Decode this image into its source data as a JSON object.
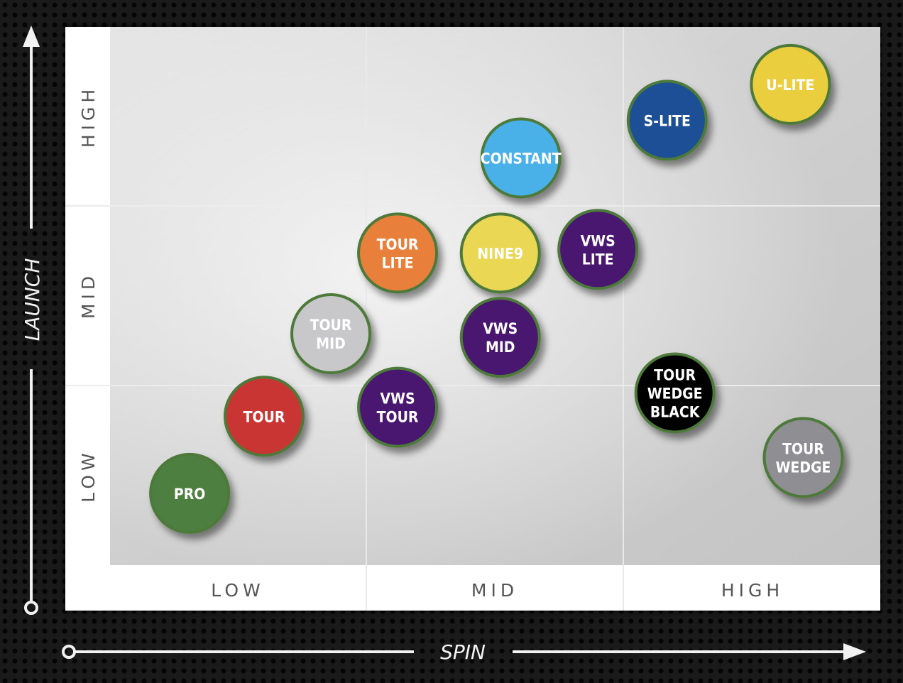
{
  "chart_data": {
    "type": "scatter",
    "title": "",
    "xlabel": "SPIN",
    "ylabel": "LAUNCH",
    "x_categories": [
      "LOW",
      "MID",
      "HIGH"
    ],
    "y_categories": [
      "LOW",
      "MID",
      "HIGH"
    ],
    "xlim": [
      0,
      3
    ],
    "ylim": [
      0,
      3
    ],
    "grid": true,
    "points": [
      {
        "label": [
          "PRO"
        ],
        "x": 0.31,
        "y": 0.4,
        "color": "#4d7f3f"
      },
      {
        "label": [
          "TOUR"
        ],
        "x": 0.6,
        "y": 0.83,
        "color": "#c93530"
      },
      {
        "label": [
          "TOUR",
          "MID"
        ],
        "x": 0.86,
        "y": 1.29,
        "color": "#c8c8ca"
      },
      {
        "label": [
          "VWS",
          "TOUR"
        ],
        "x": 1.12,
        "y": 0.88,
        "color": "#4a1370"
      },
      {
        "label": [
          "TOUR",
          "LITE"
        ],
        "x": 1.12,
        "y": 1.74,
        "color": "#e8803a"
      },
      {
        "label": [
          "NINE9"
        ],
        "x": 1.52,
        "y": 1.74,
        "color": "#ead753"
      },
      {
        "label": [
          "VWS",
          "MID"
        ],
        "x": 1.52,
        "y": 1.27,
        "color": "#4a1370"
      },
      {
        "label": [
          "VWS",
          "LITE"
        ],
        "x": 1.9,
        "y": 1.76,
        "color": "#4a1370"
      },
      {
        "label": [
          "CONSTANT"
        ],
        "x": 1.6,
        "y": 2.27,
        "color": "#4ab0e8"
      },
      {
        "label": [
          "S-LITE"
        ],
        "x": 2.17,
        "y": 2.48,
        "color": "#1d4f95"
      },
      {
        "label": [
          "U-LITE"
        ],
        "x": 2.65,
        "y": 2.68,
        "color": "#ebce3e"
      },
      {
        "label": [
          "TOUR",
          "WEDGE",
          "BLACK"
        ],
        "x": 2.2,
        "y": 0.96,
        "color": "#050505"
      },
      {
        "label": [
          "TOUR",
          "WEDGE"
        ],
        "x": 2.7,
        "y": 0.6,
        "color": "#8e8e93"
      }
    ]
  }
}
